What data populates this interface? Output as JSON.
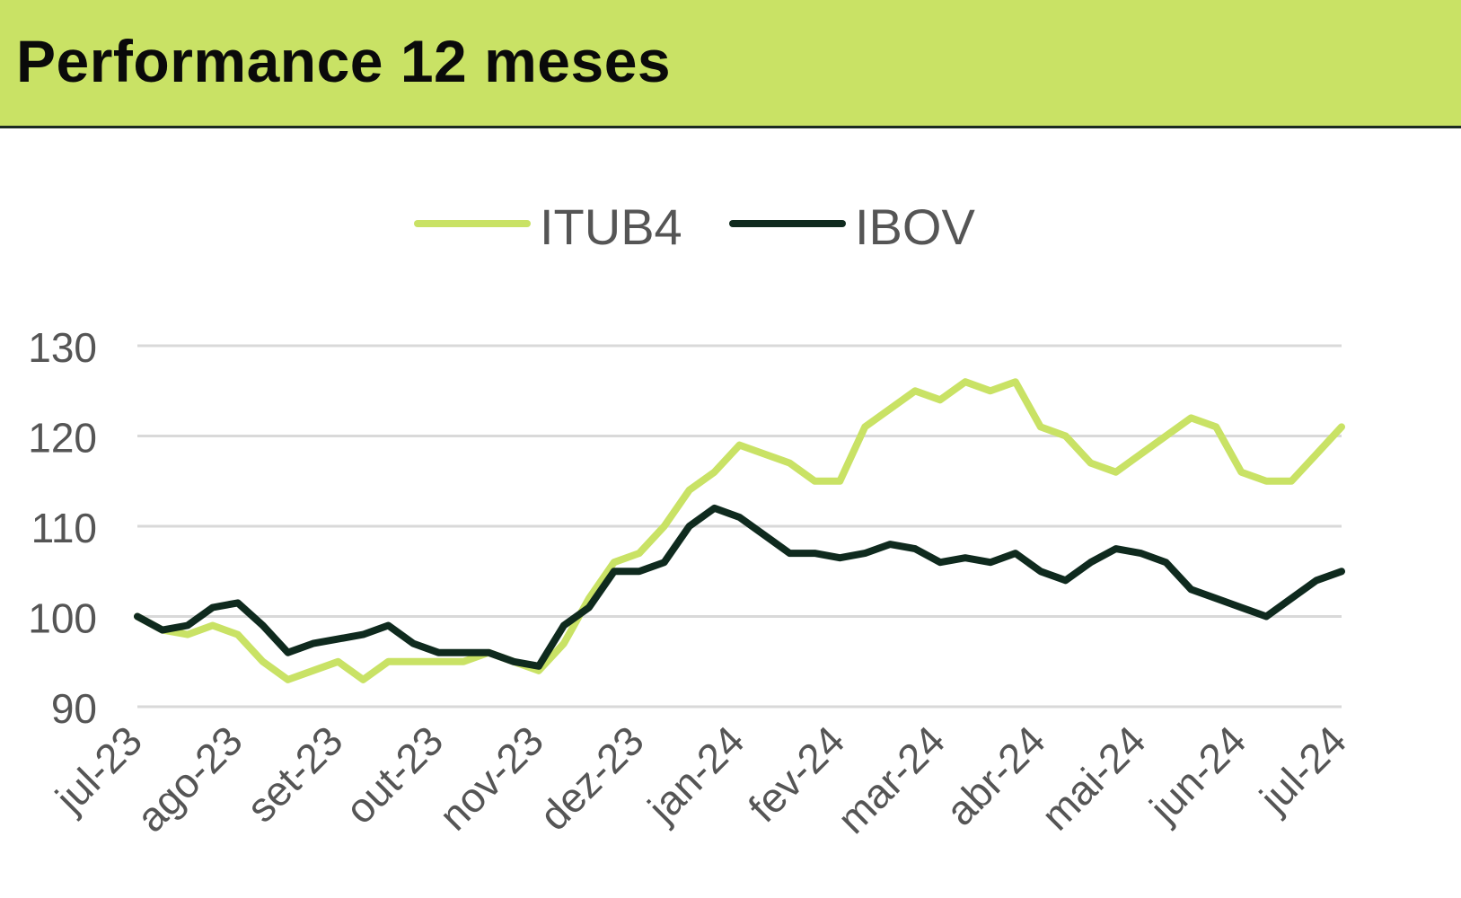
{
  "header": {
    "title": "Performance 12 meses"
  },
  "colors": {
    "itub4": "#c9e265",
    "ibov": "#0f2a1e",
    "header_bg": "#c9e265",
    "grid": "#d9d9d9",
    "axis_text": "#555555"
  },
  "chart_data": {
    "type": "line",
    "title": "Performance 12 meses",
    "xlabel": "",
    "ylabel": "",
    "ylim": [
      90,
      130
    ],
    "yticks": [
      "90",
      "100",
      "110",
      "120",
      "130"
    ],
    "xticks": [
      "jul-23",
      "ago-23",
      "set-23",
      "out-23",
      "nov-23",
      "dez-23",
      "jan-24",
      "fev-24",
      "mar-24",
      "abr-24",
      "mai-24",
      "jun-24",
      "jul-24"
    ],
    "grid": true,
    "legend_position": "top-center",
    "x": [
      0,
      0.25,
      0.5,
      0.75,
      1,
      1.25,
      1.5,
      1.75,
      2,
      2.25,
      2.5,
      2.75,
      3,
      3.25,
      3.5,
      3.75,
      4,
      4.25,
      4.5,
      4.75,
      5,
      5.25,
      5.5,
      5.75,
      6,
      6.25,
      6.5,
      6.75,
      7,
      7.25,
      7.5,
      7.75,
      8,
      8.25,
      8.5,
      8.75,
      9,
      9.25,
      9.5,
      9.75,
      10,
      10.25,
      10.5,
      10.75,
      11,
      11.25,
      11.5,
      11.75,
      12
    ],
    "series": [
      {
        "name": "ITUB4",
        "values": [
          100,
          98.5,
          98,
          99,
          98,
          95,
          93,
          94,
          95,
          93,
          95,
          95,
          95,
          95,
          96,
          95,
          94,
          97,
          102,
          106,
          107,
          110,
          114,
          116,
          119,
          118,
          117,
          115,
          115,
          121,
          123,
          125,
          124,
          126,
          125,
          126,
          121,
          120,
          117,
          116,
          118,
          120,
          122,
          121,
          116,
          115,
          115,
          118,
          121
        ]
      },
      {
        "name": "IBOV",
        "values": [
          100,
          98.5,
          99,
          101,
          101.5,
          99,
          96,
          97,
          97.5,
          98,
          99,
          97,
          96,
          96,
          96,
          95,
          94.5,
          99,
          101,
          105,
          105,
          106,
          110,
          112,
          111,
          109,
          107,
          107,
          106.5,
          107,
          108,
          107.5,
          106,
          106.5,
          106,
          107,
          105,
          104,
          106,
          107.5,
          107,
          106,
          103,
          102,
          101,
          100,
          102,
          104,
          105
        ]
      }
    ]
  }
}
